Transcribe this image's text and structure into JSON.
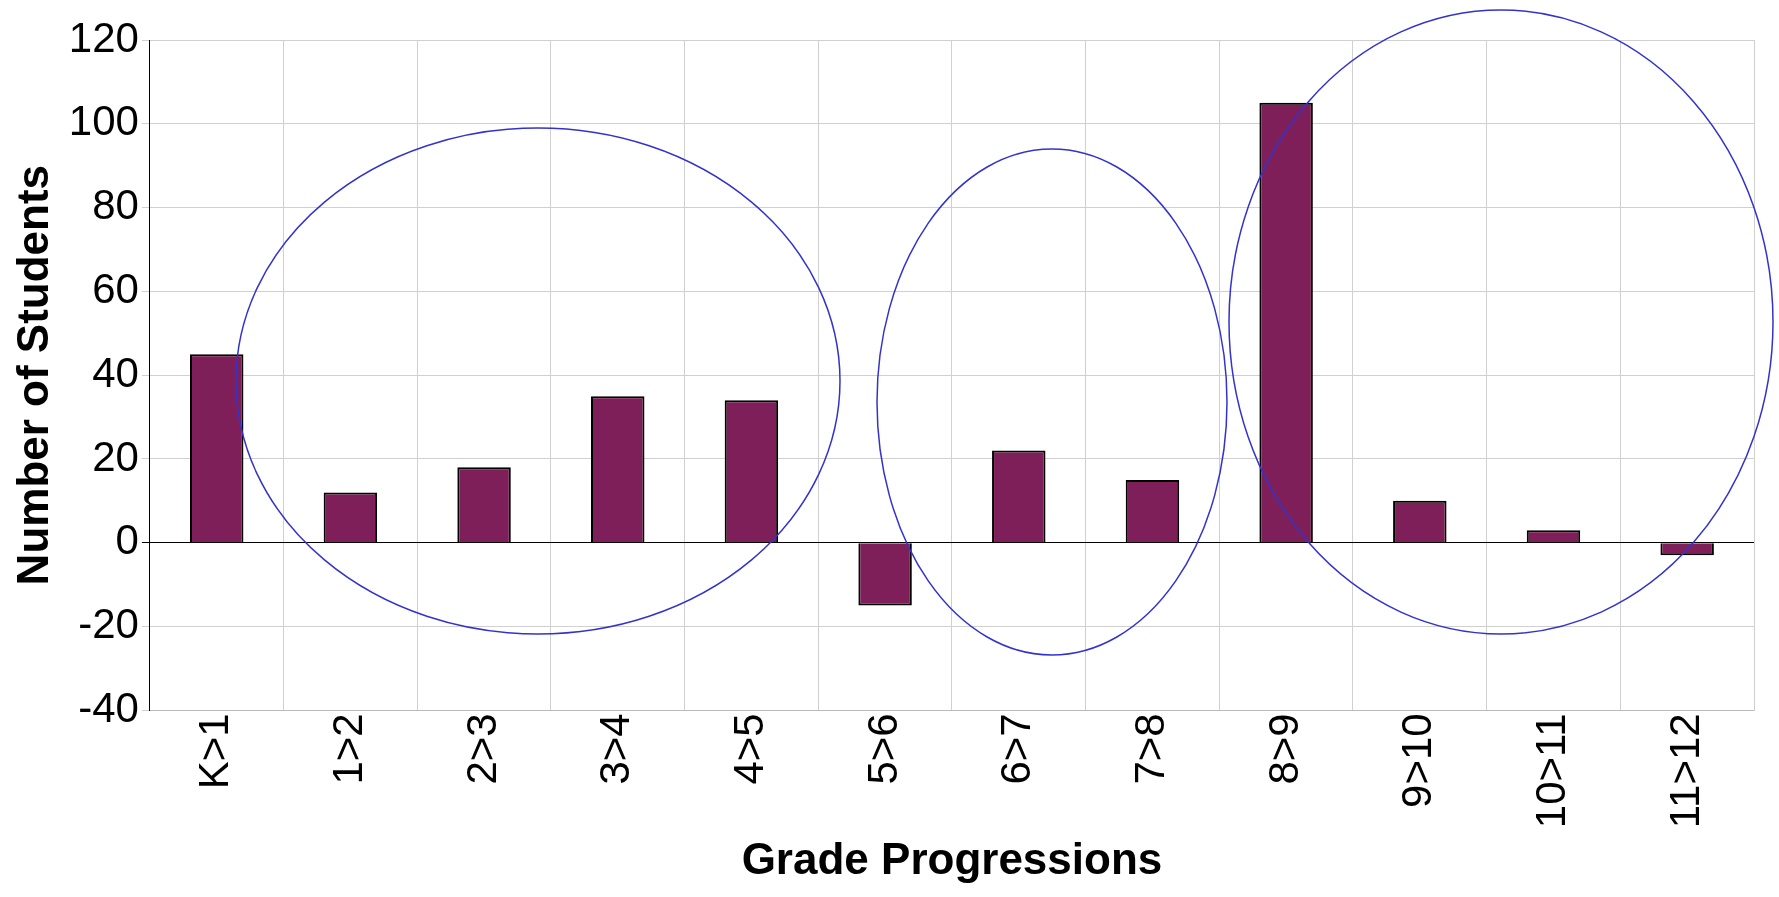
{
  "chart_data": {
    "type": "bar",
    "xlabel": "Grade Progressions",
    "ylabel": "Number of Students",
    "categories": [
      "K>1",
      "1>2",
      "2>3",
      "3>4",
      "4>5",
      "5>6",
      "6>7",
      "7>8",
      "8>9",
      "9>10",
      "10>11",
      "11>12"
    ],
    "values": [
      45,
      12,
      18,
      35,
      34,
      -15,
      22,
      15,
      105,
      10,
      3,
      -3
    ],
    "color": "#7f1f5a",
    "ylim": [
      -40,
      120
    ],
    "yticks": [
      -40,
      -20,
      0,
      20,
      40,
      60,
      80,
      100,
      120
    ],
    "grid": true,
    "legend": false
  }
}
